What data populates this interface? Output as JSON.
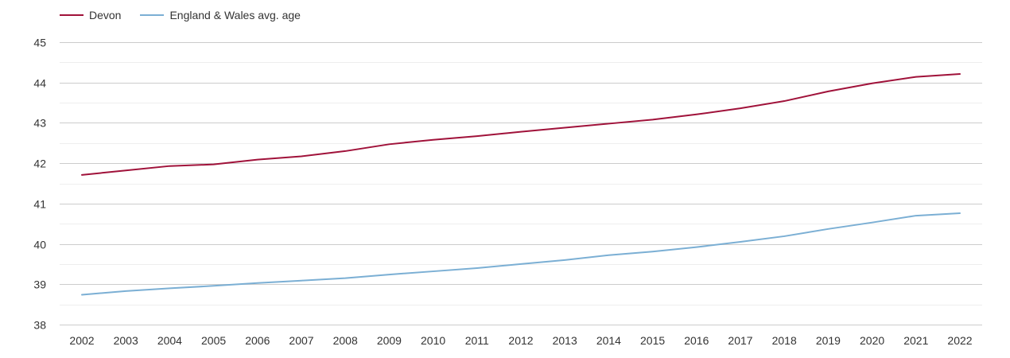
{
  "chart_data": {
    "type": "line",
    "title": "",
    "xlabel": "",
    "ylabel": "",
    "x": [
      2002,
      2003,
      2004,
      2005,
      2006,
      2007,
      2008,
      2009,
      2010,
      2011,
      2012,
      2013,
      2014,
      2015,
      2016,
      2017,
      2018,
      2019,
      2020,
      2021,
      2022
    ],
    "ylim": [
      38,
      45
    ],
    "yticks": [
      38,
      39,
      40,
      41,
      42,
      43,
      44,
      45
    ],
    "grid": true,
    "legend_position": "top-left",
    "series": [
      {
        "name": "Devon",
        "color": "#a0123a",
        "values": [
          41.71,
          41.82,
          41.93,
          41.97,
          42.09,
          42.17,
          42.3,
          42.47,
          42.58,
          42.67,
          42.78,
          42.88,
          42.98,
          43.08,
          43.21,
          43.36,
          43.54,
          43.78,
          43.98,
          44.14,
          44.21
        ]
      },
      {
        "name": "England & Wales avg. age",
        "color": "#7bafd4",
        "values": [
          38.74,
          38.83,
          38.9,
          38.96,
          39.03,
          39.09,
          39.15,
          39.24,
          39.32,
          39.4,
          39.5,
          39.6,
          39.72,
          39.81,
          39.92,
          40.05,
          40.19,
          40.37,
          40.53,
          40.7,
          40.76
        ]
      }
    ]
  }
}
